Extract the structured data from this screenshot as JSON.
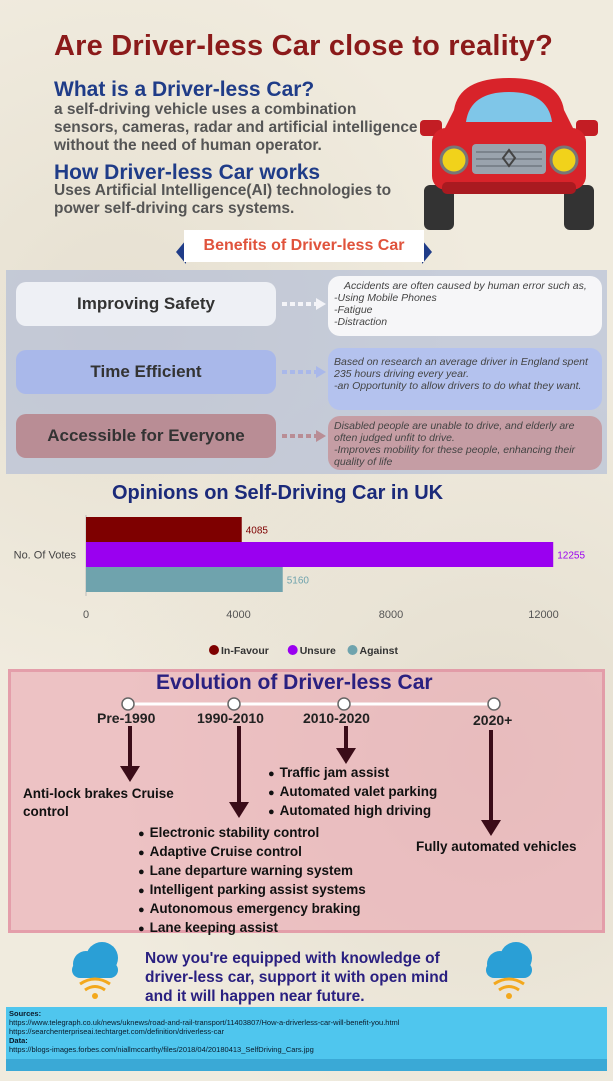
{
  "title": "Are Driver-less Car close to reality?",
  "intro": {
    "what_heading": "What is a Driver-less Car?",
    "what_text": "a self-driving vehicle uses a combination sensors, cameras, radar and artificial intelligence without the need of human operator.",
    "how_heading": "How Driver-less Car works",
    "how_text": "Uses Artificial Intelligence(AI) technologies to power self-driving cars systems."
  },
  "benefits": {
    "heading": "Benefits of Driver-less Car",
    "items": [
      {
        "label": "Improving Safety",
        "lines": [
          "Accidents are often caused by human error such as,",
          "-Using Mobile Phones",
          "-Fatigue",
          "-Distraction"
        ],
        "color": "#eef0f5"
      },
      {
        "label": "Time Efficient",
        "lines": [
          "Based on research an average driver in England spent",
          "235 hours driving every year.",
          "-an Opportunity to allow drivers to do what they want."
        ],
        "color": "#a9b8ea"
      },
      {
        "label": "Accessible for Everyone",
        "lines": [
          "Disabled people are unable to drive, and elderly are",
          "often judged unfit to drive.",
          "-Improves mobility for these people, enhancing their",
          "quality of life"
        ],
        "color": "#b98d95"
      }
    ]
  },
  "chart": {
    "title": "Opinions on Self-Driving  Car in UK"
  },
  "chart_data": {
    "type": "bar",
    "orientation": "horizontal",
    "categories": [
      "No. Of Votes"
    ],
    "series": [
      {
        "name": "In-Favour",
        "values": [
          4085
        ],
        "color": "#7e0000"
      },
      {
        "name": "Unsure",
        "values": [
          12255
        ],
        "color": "#9a00f0"
      },
      {
        "name": "Against",
        "values": [
          5160
        ],
        "color": "#6fa3ad"
      }
    ],
    "xlim": [
      0,
      12800
    ],
    "xticks": [
      0,
      4000,
      8000,
      12000
    ],
    "data_labels": true,
    "legend": "bottom",
    "grid": false
  },
  "evolution": {
    "heading": "Evolution of Driver-less Car",
    "eras": [
      {
        "label": "Pre-1990",
        "items": [
          "Anti-lock brakes Cruise control"
        ]
      },
      {
        "label": "1990-2010",
        "items": [
          "Electronic stability control",
          "Adaptive Cruise control",
          "Lane departure warning system",
          "Intelligent parking assist systems",
          "Autonomous emergency braking",
          "Lane keeping assist"
        ]
      },
      {
        "label": "2010-2020",
        "items": [
          "Traffic jam assist",
          "Automated valet parking",
          "Automated high driving"
        ]
      },
      {
        "label": "2020+",
        "items": [
          "Fully automated vehicles"
        ]
      }
    ]
  },
  "closing": "Now you're equipped with knowledge of driver-less car, support it with open mind and it will happen near future.",
  "sources": {
    "heading": "Sources:",
    "links": [
      "https://www.telegraph.co.uk/news/uknews/road-and-rail-transport/11403807/How-a-driverless-car-will-benefit-you.html",
      "https://searchenterpriseai.techtarget.com/definition/driverless-car"
    ],
    "data_heading": "Data:",
    "data_link": "https://blogs-images.forbes.com/niallmccarthy/files/2018/04/20180413_SelfDriving_Cars.jpg"
  },
  "icons": [
    "car-icon",
    "cloud-wifi-icon"
  ]
}
